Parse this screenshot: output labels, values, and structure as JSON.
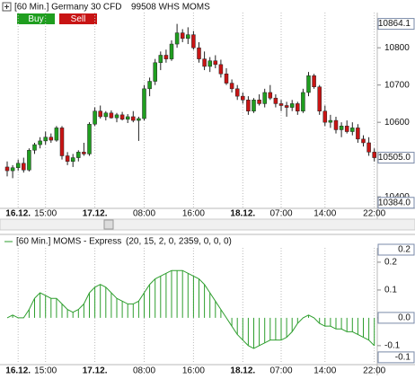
{
  "header": {
    "title": "[60 Min.] Germany 30 CFD",
    "quote": "99508 WHS MOMS"
  },
  "buttons": [
    "Buy",
    "Sell"
  ],
  "chart_data": [
    {
      "type": "candlestick",
      "up_color": "#1f9e1f",
      "down_color": "#c81414",
      "grid": "x",
      "categories": [
        null,
        null,
        "16.12.",
        null,
        null,
        null,
        null,
        "15:00",
        null,
        null,
        null,
        null,
        null,
        null,
        null,
        null,
        "17.12.",
        null,
        null,
        null,
        null,
        null,
        null,
        null,
        null,
        "08:00",
        null,
        null,
        null,
        null,
        null,
        null,
        null,
        null,
        "16:00",
        null,
        null,
        null,
        null,
        null,
        null,
        null,
        null,
        "18.12.",
        null,
        null,
        null,
        null,
        null,
        null,
        "07:00",
        null,
        null,
        null,
        null,
        null,
        null,
        null,
        "14:00",
        null,
        null,
        null,
        null,
        null,
        null,
        null,
        null,
        "22:00"
      ],
      "candles": [
        [
          10480,
          10495,
          10455,
          10470
        ],
        [
          10470,
          10485,
          10450,
          10478
        ],
        [
          10478,
          10500,
          10470,
          10490
        ],
        [
          10490,
          10505,
          10465,
          10472
        ],
        [
          10472,
          10530,
          10468,
          10525
        ],
        [
          10525,
          10545,
          10515,
          10540
        ],
        [
          10540,
          10560,
          10530,
          10550
        ],
        [
          10550,
          10575,
          10540,
          10560
        ],
        [
          10560,
          10570,
          10545,
          10552
        ],
        [
          10552,
          10590,
          10548,
          10585
        ],
        [
          10585,
          10590,
          10500,
          10510
        ],
        [
          10510,
          10520,
          10485,
          10495
        ],
        [
          10495,
          10515,
          10480,
          10505
        ],
        [
          10505,
          10525,
          10495,
          10520
        ],
        [
          10520,
          10545,
          10510,
          10515
        ],
        [
          10515,
          10600,
          10510,
          10595
        ],
        [
          10595,
          10640,
          10590,
          10630
        ],
        [
          10630,
          10645,
          10610,
          10615
        ],
        [
          10615,
          10630,
          10605,
          10625
        ],
        [
          10625,
          10632,
          10610,
          10612
        ],
        [
          10612,
          10625,
          10600,
          10620
        ],
        [
          10620,
          10628,
          10605,
          10608
        ],
        [
          10608,
          10622,
          10598,
          10615
        ],
        [
          10615,
          10630,
          10600,
          10605
        ],
        [
          10605,
          10615,
          10550,
          10610
        ],
        [
          10610,
          10700,
          10605,
          10690
        ],
        [
          10690,
          10720,
          10670,
          10710
        ],
        [
          10710,
          10770,
          10700,
          10760
        ],
        [
          10760,
          10790,
          10740,
          10780
        ],
        [
          10780,
          10795,
          10760,
          10770
        ],
        [
          10770,
          10820,
          10765,
          10810
        ],
        [
          10810,
          10864.1,
          10800,
          10840
        ],
        [
          10840,
          10850,
          10815,
          10825
        ],
        [
          10825,
          10855,
          10810,
          10835
        ],
        [
          10835,
          10845,
          10795,
          10800
        ],
        [
          10800,
          10815,
          10760,
          10770
        ],
        [
          10770,
          10790,
          10740,
          10750
        ],
        [
          10750,
          10775,
          10735,
          10765
        ],
        [
          10765,
          10780,
          10745,
          10755
        ],
        [
          10755,
          10768,
          10720,
          10730
        ],
        [
          10730,
          10745,
          10700,
          10705
        ],
        [
          10705,
          10715,
          10680,
          10690
        ],
        [
          10690,
          10700,
          10660,
          10670
        ],
        [
          10670,
          10680,
          10650,
          10660
        ],
        [
          10660,
          10670,
          10620,
          10630
        ],
        [
          10630,
          10665,
          10625,
          10660
        ],
        [
          10660,
          10675,
          10645,
          10650
        ],
        [
          10650,
          10690,
          10640,
          10680
        ],
        [
          10680,
          10700,
          10660,
          10665
        ],
        [
          10665,
          10675,
          10640,
          10650
        ],
        [
          10650,
          10660,
          10630,
          10645
        ],
        [
          10645,
          10655,
          10615,
          10640
        ],
        [
          10640,
          10660,
          10630,
          10650
        ],
        [
          10650,
          10655,
          10620,
          10630
        ],
        [
          10630,
          10690,
          10625,
          10680
        ],
        [
          10680,
          10735,
          10670,
          10725
        ],
        [
          10725,
          10730,
          10690,
          10695
        ],
        [
          10695,
          10700,
          10620,
          10630
        ],
        [
          10630,
          10645,
          10590,
          10600
        ],
        [
          10600,
          10620,
          10585,
          10605
        ],
        [
          10605,
          10615,
          10570,
          10580
        ],
        [
          10580,
          10600,
          10560,
          10590
        ],
        [
          10590,
          10605,
          10570,
          10575
        ],
        [
          10575,
          10600,
          10565,
          10585
        ],
        [
          10585,
          10595,
          10545,
          10555
        ],
        [
          10555,
          10565,
          10535,
          10545
        ],
        [
          10545,
          10560,
          10510,
          10520
        ],
        [
          10520,
          10530,
          10495,
          10505.0
        ]
      ],
      "ylim": [
        10369,
        10880
      ],
      "yticks": [
        10400,
        10600,
        10700,
        10800
      ],
      "markers": [
        10864.1,
        {
          "value": 10505.0,
          "label": "10505.0"
        },
        {
          "value": 10384.0,
          "label": "10384.0"
        }
      ]
    },
    {
      "type": "momentum",
      "title": "[60 Min.] MOMS - Express",
      "params": "(20, 15, 2, 0, 2359, 0, 0, 0)",
      "color": "#2e9e2e",
      "grid": "x",
      "categories": [
        null,
        null,
        "16.12.",
        null,
        null,
        null,
        null,
        "15:00",
        null,
        null,
        null,
        null,
        null,
        null,
        null,
        null,
        "17.12.",
        null,
        null,
        null,
        null,
        null,
        null,
        null,
        null,
        "08:00",
        null,
        null,
        null,
        null,
        null,
        null,
        null,
        null,
        "16:00",
        null,
        null,
        null,
        null,
        null,
        null,
        null,
        null,
        "18.12.",
        null,
        null,
        null,
        null,
        null,
        null,
        "07:00",
        null,
        null,
        null,
        null,
        null,
        null,
        null,
        "14:00",
        null,
        null,
        null,
        null,
        null,
        null,
        null,
        null,
        "22:00"
      ],
      "values": [
        0.0,
        0.01,
        0.0,
        0.0,
        0.03,
        0.07,
        0.09,
        0.08,
        0.07,
        0.07,
        0.05,
        0.03,
        0.02,
        0.03,
        0.05,
        0.09,
        0.11,
        0.12,
        0.11,
        0.09,
        0.07,
        0.06,
        0.05,
        0.05,
        0.06,
        0.09,
        0.12,
        0.14,
        0.15,
        0.16,
        0.17,
        0.17,
        0.17,
        0.16,
        0.15,
        0.14,
        0.12,
        0.09,
        0.06,
        0.03,
        0.0,
        -0.03,
        -0.06,
        -0.08,
        -0.1,
        -0.11,
        -0.1,
        -0.09,
        -0.08,
        -0.08,
        -0.08,
        -0.07,
        -0.05,
        -0.02,
        0.0,
        0.01,
        0.0,
        -0.02,
        -0.03,
        -0.03,
        -0.04,
        -0.04,
        -0.05,
        -0.05,
        -0.06,
        -0.07,
        -0.08,
        -0.1
      ],
      "ylim": [
        -0.165,
        0.245
      ],
      "yticks": [
        -0.1,
        {
          "value": 0,
          "label": "0.0"
        },
        0.1,
        0.2
      ],
      "markers": [
        {
          "value": 0.245,
          "label": "0.2"
        },
        {
          "value": 0,
          "label": "0.0"
        },
        {
          "value": -0.142,
          "label": "-0.1"
        }
      ]
    }
  ]
}
